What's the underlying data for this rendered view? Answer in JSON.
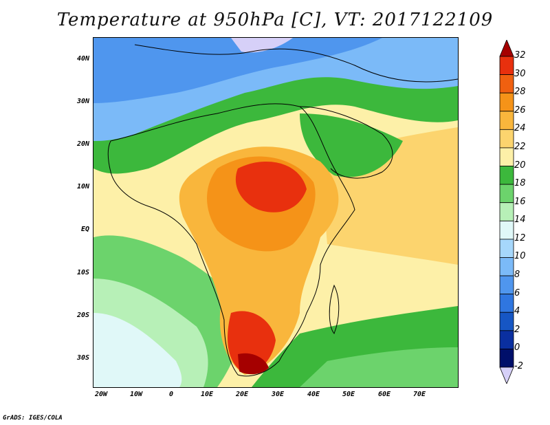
{
  "title": "Temperature at 950hPa [C], VT: 2017122109",
  "footer": "GrADS: IGES/COLA",
  "lat_ticks": [
    "40N",
    "30N",
    "20N",
    "10N",
    "EQ",
    "10S",
    "20S",
    "30S"
  ],
  "lon_ticks": [
    "20W",
    "10W",
    "0",
    "10E",
    "20E",
    "30E",
    "40E",
    "50E",
    "60E",
    "70E"
  ],
  "colorbar": {
    "levels": [
      "32",
      "30",
      "28",
      "26",
      "24",
      "22",
      "20",
      "18",
      "16",
      "14",
      "12",
      "10",
      "8",
      "6",
      "4",
      "2",
      "0",
      "-2"
    ],
    "colors": [
      "#a50000",
      "#e8300e",
      "#f06010",
      "#f59318",
      "#f9b63c",
      "#fcd46e",
      "#fdf0a8",
      "#3cb83c",
      "#6cd36c",
      "#b7f0b7",
      "#e0f8f8",
      "#a6d7fb",
      "#7bbaf8",
      "#4f96ee",
      "#2f76e0",
      "#1656c4",
      "#0a2fa0",
      "#000f6a",
      "#d6d0f8"
    ]
  },
  "map": {
    "extent": {
      "lon_min": -23,
      "lon_max": 80,
      "lat_min": -37,
      "lat_max": 45
    },
    "units": "C"
  }
}
